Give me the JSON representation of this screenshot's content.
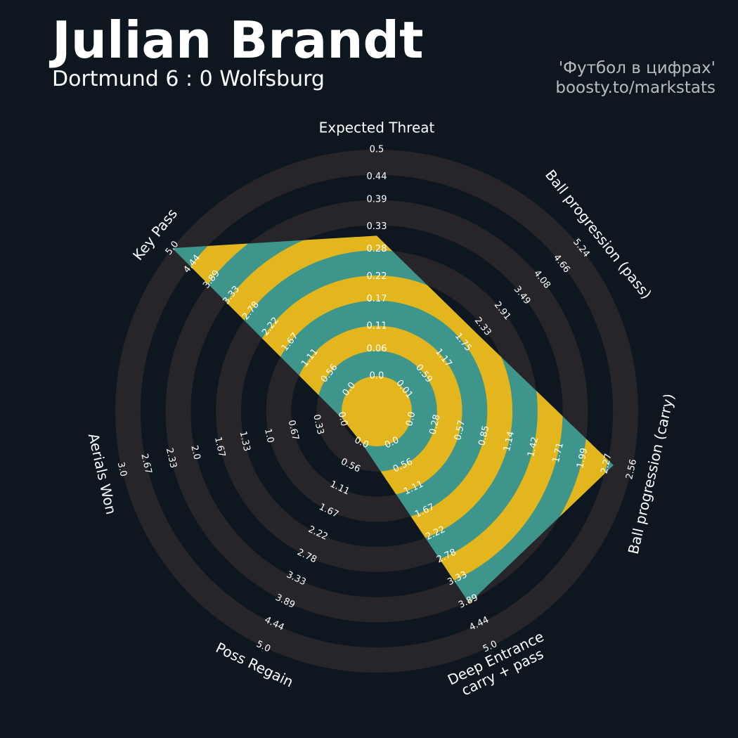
{
  "chart_data": {
    "type": "radar",
    "title": "Julian Brandt",
    "subtitle": "Dortmund 6 : 0 Wolfsburg",
    "credits": [
      "'Футбол в цифрах'",
      "boosty.to/markstats"
    ],
    "categories": [
      "Expected Threat",
      "Ball progression (pass)",
      "Ball progression (carry)",
      [
        "Deep Entrance",
        "carry + pass"
      ],
      "Poss Regain",
      "Aerials Won",
      "Key Pass"
    ],
    "lims": [
      [
        0,
        0.5
      ],
      [
        0.01,
        5.24
      ],
      [
        0,
        2.56
      ],
      [
        0,
        5
      ],
      [
        0,
        5
      ],
      [
        0,
        3
      ],
      [
        0,
        5
      ]
    ],
    "ticks": [
      [
        {
          "value": 0,
          "label": "0.0"
        },
        0.06,
        0.11,
        0.17,
        0.22,
        0.28,
        0.33,
        0.39,
        0.44,
        0.5
      ],
      [
        0.01,
        0.59,
        1.17,
        1.75,
        2.33,
        2.91,
        3.49,
        4.08,
        4.66,
        5.24
      ],
      [
        {
          "value": 0,
          "label": "0.0"
        },
        0.28,
        0.57,
        0.85,
        1.14,
        1.42,
        1.71,
        1.99,
        2.27,
        2.56
      ],
      [
        {
          "value": 0,
          "label": "0.0"
        },
        0.56,
        1.11,
        1.67,
        2.22,
        2.78,
        3.33,
        3.89,
        4.44,
        {
          "value": 5,
          "label": "5.0"
        }
      ],
      [
        {
          "value": 0,
          "label": "0.0"
        },
        0.56,
        1.11,
        1.67,
        2.22,
        2.78,
        3.33,
        3.89,
        4.44,
        {
          "value": 5,
          "label": "5.0"
        }
      ],
      [
        {
          "value": 0,
          "label": "0.0"
        },
        0.33,
        0.67,
        {
          "value": 1,
          "label": "1.0"
        },
        1.33,
        1.67,
        {
          "value": 2,
          "label": "2.0"
        },
        2.33,
        2.67,
        {
          "value": 3,
          "label": "3.0"
        }
      ],
      [
        {
          "value": 0,
          "label": "0.0"
        },
        0.56,
        1.11,
        1.67,
        2.22,
        2.78,
        3.33,
        3.89,
        4.44,
        {
          "value": 5,
          "label": "5.0"
        }
      ]
    ],
    "values": [
      0.31,
      2.12,
      2.35,
      3.93,
      0,
      0,
      5
    ],
    "colors": {
      "background": "#0e1720",
      "ring": "#28252a",
      "fill": "#3d958c",
      "fill_alt": "#e2b61c"
    }
  }
}
